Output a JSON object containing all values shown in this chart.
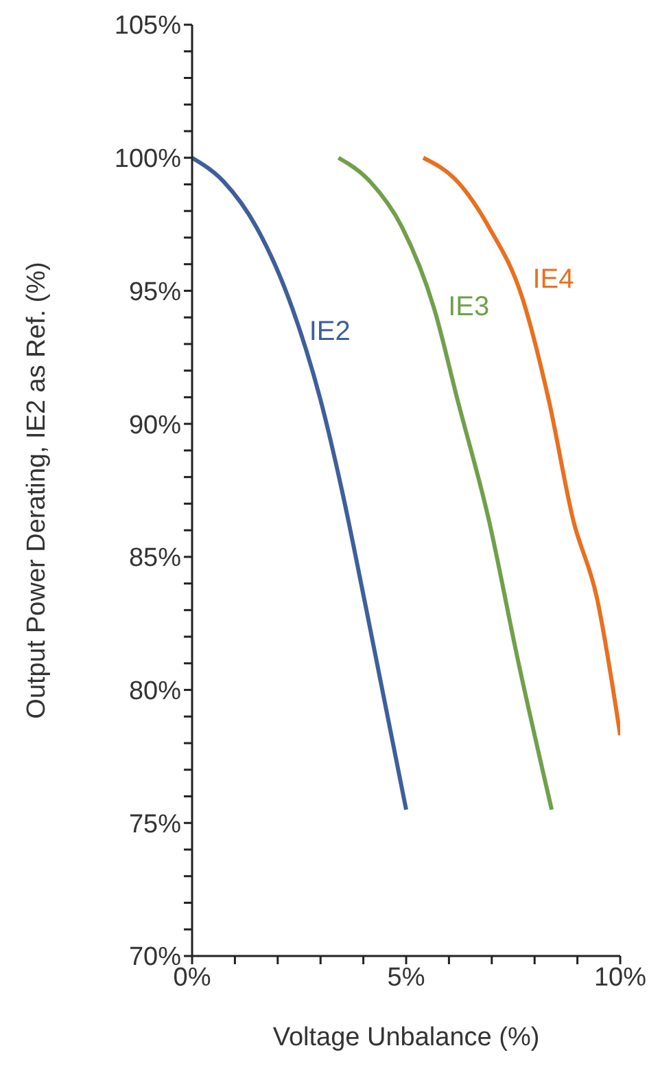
{
  "chart_data": {
    "type": "line",
    "xlabel": "Voltage Unbalance (%)",
    "ylabel": "Output Power Derating, IE2 as Ref. (%)",
    "xlim": [
      0,
      10
    ],
    "ylim": [
      70,
      105
    ],
    "xticks": [
      {
        "value": 0,
        "label": "0%"
      },
      {
        "value": 1,
        "label": null
      },
      {
        "value": 2,
        "label": null
      },
      {
        "value": 3,
        "label": null
      },
      {
        "value": 4,
        "label": null
      },
      {
        "value": 5,
        "label": "5%"
      },
      {
        "value": 6,
        "label": null
      },
      {
        "value": 7,
        "label": null
      },
      {
        "value": 8,
        "label": null
      },
      {
        "value": 9,
        "label": null
      },
      {
        "value": 10,
        "label": "10%"
      }
    ],
    "yticks": [
      {
        "value": 70,
        "label": "70%"
      },
      {
        "value": 71,
        "label": null
      },
      {
        "value": 72,
        "label": null
      },
      {
        "value": 73,
        "label": null
      },
      {
        "value": 74,
        "label": null
      },
      {
        "value": 75,
        "label": "75%"
      },
      {
        "value": 76,
        "label": null
      },
      {
        "value": 77,
        "label": null
      },
      {
        "value": 78,
        "label": null
      },
      {
        "value": 79,
        "label": null
      },
      {
        "value": 80,
        "label": "80%"
      },
      {
        "value": 81,
        "label": null
      },
      {
        "value": 82,
        "label": null
      },
      {
        "value": 83,
        "label": null
      },
      {
        "value": 84,
        "label": null
      },
      {
        "value": 85,
        "label": "85%"
      },
      {
        "value": 86,
        "label": null
      },
      {
        "value": 87,
        "label": null
      },
      {
        "value": 88,
        "label": null
      },
      {
        "value": 89,
        "label": null
      },
      {
        "value": 90,
        "label": "90%"
      },
      {
        "value": 91,
        "label": null
      },
      {
        "value": 92,
        "label": null
      },
      {
        "value": 93,
        "label": null
      },
      {
        "value": 94,
        "label": null
      },
      {
        "value": 95,
        "label": "95%"
      },
      {
        "value": 96,
        "label": null
      },
      {
        "value": 97,
        "label": null
      },
      {
        "value": 98,
        "label": null
      },
      {
        "value": 99,
        "label": null
      },
      {
        "value": 100,
        "label": "100%"
      },
      {
        "value": 101,
        "label": null
      },
      {
        "value": 102,
        "label": null
      },
      {
        "value": 103,
        "label": null
      },
      {
        "value": 104,
        "label": null
      },
      {
        "value": 105,
        "label": "105%"
      }
    ],
    "marker": "none",
    "line_style": "solid",
    "series": [
      {
        "name": "IE2",
        "color": "#3e5f9a",
        "x": [
          0,
          0.74,
          1.5,
          2.35,
          3.0,
          3.5,
          4.06,
          5.0
        ],
        "values": [
          100,
          99.1,
          97.4,
          94.3,
          90.9,
          87.5,
          83.1,
          75.5
        ]
      },
      {
        "name": "IE3",
        "color": "#70a04a",
        "x": [
          3.42,
          4.16,
          4.9,
          5.66,
          6.2,
          6.93,
          7.6,
          8.4
        ],
        "values": [
          100,
          99.1,
          97.4,
          94.3,
          90.9,
          86.4,
          81.2,
          75.5
        ]
      },
      {
        "name": "IE4",
        "color": "#e8701f",
        "x": [
          5.4,
          6.2,
          6.93,
          7.7,
          8.33,
          8.9,
          9.45,
          10.0
        ],
        "values": [
          100,
          99.1,
          97.4,
          94.8,
          90.9,
          86.4,
          83.5,
          78.3
        ]
      }
    ]
  }
}
